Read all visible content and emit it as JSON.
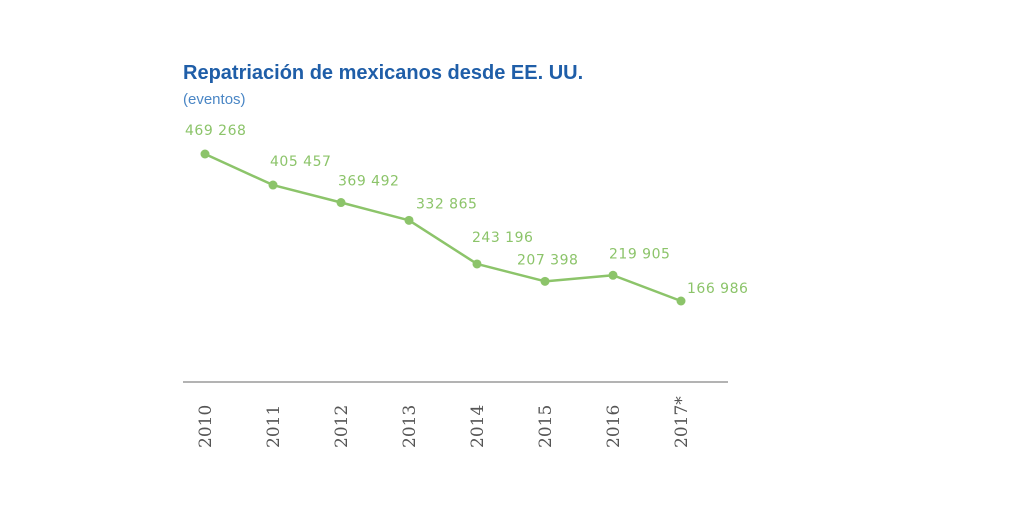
{
  "chart_data": {
    "type": "line",
    "title": "Repatriación de mexicanos desde EE. UU.",
    "subtitle": "(eventos)",
    "categories": [
      "2010",
      "2011",
      "2012",
      "2013",
      "2014",
      "2015",
      "2016",
      "2017*"
    ],
    "data_labels": [
      "469 268",
      "405 457",
      "369 492",
      "332 865",
      "243 196",
      "207 398",
      "219 905",
      "166 986"
    ],
    "series": [
      {
        "values": [
          469268,
          405457,
          369492,
          332865,
          243196,
          207398,
          219905,
          166986
        ],
        "color": "#8cc46a"
      }
    ],
    "grid": false,
    "legend": "none"
  }
}
